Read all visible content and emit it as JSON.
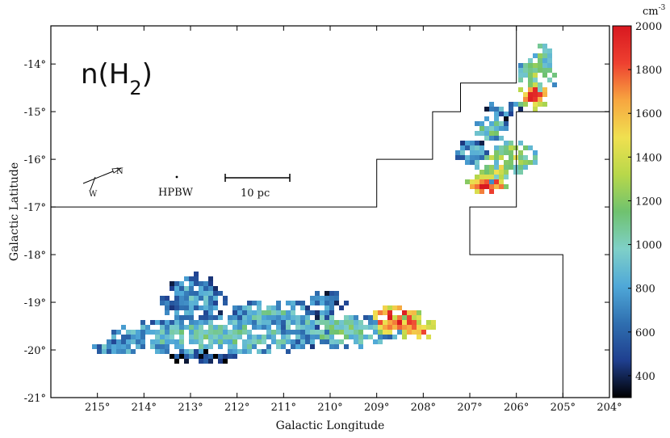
{
  "chart_data": {
    "type": "heatmap",
    "title": "n(H2)",
    "xlabel": "Galactic Longitude",
    "ylabel": "Galactic Latitude",
    "xlim": [
      216.0,
      204.0
    ],
    "ylim": [
      -21.0,
      -13.2
    ],
    "x_ticks": [
      215,
      214,
      213,
      212,
      211,
      210,
      209,
      208,
      207,
      206,
      205,
      204
    ],
    "x_tick_labels": [
      "215°",
      "214°",
      "213°",
      "212°",
      "211°",
      "210°",
      "209°",
      "208°",
      "207°",
      "206°",
      "205°",
      "204°"
    ],
    "y_ticks": [
      -14,
      -15,
      -16,
      -17,
      -18,
      -19,
      -20,
      -21
    ],
    "y_tick_labels": [
      "-14°",
      "-15°",
      "-16°",
      "-17°",
      "-18°",
      "-19°",
      "-20°",
      "-21°"
    ],
    "colorbar": {
      "unit": "cm",
      "unit_exponent": "-3",
      "min": 300,
      "max": 2000,
      "ticks": [
        400,
        600,
        800,
        1000,
        1200,
        1400,
        1600,
        1800,
        2000
      ],
      "tick_labels": [
        "400",
        "600",
        "800",
        "1000",
        "1200",
        "1400",
        "1600",
        "1800",
        "2000"
      ],
      "colormap": [
        "#000000",
        "#1f3f8f",
        "#2f6fb0",
        "#4fa8d8",
        "#7fd0c8",
        "#6fc26f",
        "#b8d84a",
        "#f0e050",
        "#f7a640",
        "#ee4030",
        "#d81820"
      ]
    },
    "coverage_boundary": [
      [
        216.0,
        -17.0
      ],
      [
        209.0,
        -17.0
      ],
      [
        209.0,
        -16.0
      ],
      [
        207.8,
        -16.0
      ],
      [
        207.8,
        -15.0
      ],
      [
        207.2,
        -15.0
      ],
      [
        207.2,
        -14.4
      ],
      [
        206.0,
        -14.4
      ],
      [
        206.0,
        -13.2
      ],
      [
        204.0,
        -13.2
      ],
      [
        204.0,
        -15.0
      ],
      [
        205.0,
        -15.0
      ],
      [
        205.0,
        -15.0
      ],
      [
        206.0,
        -15.0
      ],
      [
        206.0,
        -17.0
      ],
      [
        207.0,
        -17.0
      ],
      [
        207.0,
        -18.0
      ],
      [
        206.0,
        -18.0
      ],
      [
        206.0,
        -18.0
      ],
      [
        205.0,
        -18.0
      ],
      [
        205.0,
        -21.0
      ]
    ],
    "clumps": [
      {
        "cx": 212.4,
        "cy": -19.65,
        "rx": 2.4,
        "ry": 0.42,
        "level": 1000
      },
      {
        "cx": 209.8,
        "cy": -19.55,
        "rx": 1.3,
        "ry": 0.35,
        "level": 1050
      },
      {
        "cx": 213.0,
        "cy": -18.9,
        "rx": 0.7,
        "ry": 0.55,
        "level": 800
      },
      {
        "cx": 211.3,
        "cy": -19.2,
        "rx": 0.9,
        "ry": 0.3,
        "level": 950
      },
      {
        "cx": 208.6,
        "cy": -19.3,
        "rx": 0.6,
        "ry": 0.3,
        "level": 1950
      },
      {
        "cx": 208.4,
        "cy": -19.5,
        "rx": 0.7,
        "ry": 0.25,
        "level": 1850
      },
      {
        "cx": 214.6,
        "cy": -19.9,
        "rx": 0.6,
        "ry": 0.15,
        "level": 850
      },
      {
        "cx": 212.8,
        "cy": -20.1,
        "rx": 0.8,
        "ry": 0.12,
        "level": 520
      },
      {
        "cx": 210.2,
        "cy": -19.0,
        "rx": 0.5,
        "ry": 0.3,
        "level": 700
      },
      {
        "cx": 206.7,
        "cy": -16.5,
        "rx": 0.45,
        "ry": 0.22,
        "level": 1950
      },
      {
        "cx": 206.5,
        "cy": -16.1,
        "rx": 0.5,
        "ry": 0.35,
        "level": 1350
      },
      {
        "cx": 206.6,
        "cy": -15.3,
        "rx": 0.4,
        "ry": 0.3,
        "level": 1050
      },
      {
        "cx": 206.1,
        "cy": -15.9,
        "rx": 0.5,
        "ry": 0.35,
        "level": 1300
      },
      {
        "cx": 205.7,
        "cy": -14.6,
        "rx": 0.35,
        "ry": 0.3,
        "level": 1850
      },
      {
        "cx": 205.6,
        "cy": -14.2,
        "rx": 0.45,
        "ry": 0.4,
        "level": 1200
      },
      {
        "cx": 206.3,
        "cy": -14.9,
        "rx": 0.4,
        "ry": 0.2,
        "level": 750
      },
      {
        "cx": 207.0,
        "cy": -15.8,
        "rx": 0.4,
        "ry": 0.25,
        "level": 850
      },
      {
        "cx": 205.5,
        "cy": -13.7,
        "rx": 0.25,
        "ry": 0.25,
        "level": 1150
      }
    ],
    "annotations": {
      "compass_north": "N",
      "compass_west": "W",
      "beam_label": "HPBW",
      "scale_bar_label": "10 pc"
    }
  }
}
